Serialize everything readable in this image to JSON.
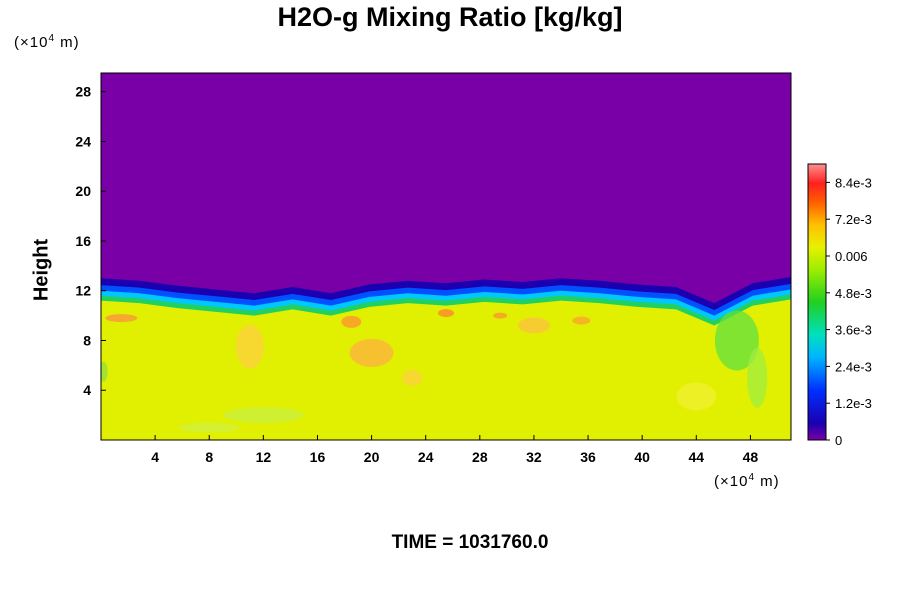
{
  "chart_data": {
    "type": "heatmap",
    "title": "H2O-g Mixing Ratio [kg/kg]",
    "ylabel": "Height",
    "x_unit_label": "(×10",
    "x_unit_exp": "4",
    "x_unit_suffix": " m)",
    "y_unit_label": "(×10",
    "y_unit_exp": "4",
    "y_unit_suffix": " m)",
    "time_label": "TIME = 1031760.0",
    "xlim": [
      0,
      51
    ],
    "ylim": [
      0,
      29.5
    ],
    "xticks": [
      4,
      8,
      12,
      16,
      20,
      24,
      28,
      32,
      36,
      40,
      44,
      48
    ],
    "yticks": [
      4,
      8,
      12,
      16,
      20,
      24,
      28
    ],
    "colorbar": {
      "range": [
        0,
        0.009
      ],
      "ticks": [
        {
          "value": 0,
          "label": "0"
        },
        {
          "value": 0.0012,
          "label": "1.2e-3"
        },
        {
          "value": 0.0024,
          "label": "2.4e-3"
        },
        {
          "value": 0.0036,
          "label": "3.6e-3"
        },
        {
          "value": 0.0048,
          "label": "4.8e-3"
        },
        {
          "value": 0.006,
          "label": "0.006"
        },
        {
          "value": 0.0072,
          "label": "7.2e-3"
        },
        {
          "value": 0.0084,
          "label": "8.4e-3"
        }
      ]
    },
    "fields": {
      "upper_value": 0,
      "lower_value": 0.0064,
      "interface_height": [
        12.2,
        12.0,
        11.6,
        11.3,
        11.0,
        11.5,
        11.0,
        11.7,
        12.0,
        11.8,
        12.1,
        11.9,
        12.2,
        12.0,
        11.7,
        11.5,
        10.2,
        11.8,
        12.3
      ]
    }
  }
}
